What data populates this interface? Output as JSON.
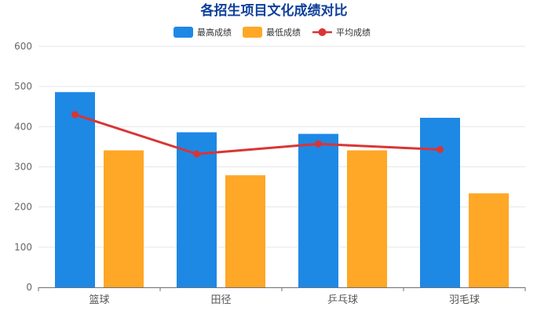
{
  "colors": {
    "title": "#0d3f9b",
    "max_bar": "#1e88e5",
    "min_bar": "#ffa726",
    "avg_line": "#d93535",
    "grid": "#e6e6e6",
    "axis": "#6e7079"
  },
  "chart_data": {
    "type": "bar",
    "title": "各招生项目文化成绩对比",
    "xlabel": "",
    "ylabel": "",
    "categories": [
      "篮球",
      "田径",
      "乒乓球",
      "羽毛球"
    ],
    "ylim": [
      0,
      600
    ],
    "yticks": [
      0,
      100,
      200,
      300,
      400,
      500,
      600
    ],
    "grid": true,
    "legend_position": "top-center",
    "series": [
      {
        "name": "最高成绩",
        "type": "bar",
        "values": [
          486,
          386,
          382,
          422
        ]
      },
      {
        "name": "最低成绩",
        "type": "bar",
        "values": [
          341,
          279,
          341,
          234
        ]
      },
      {
        "name": "平均成绩",
        "type": "line",
        "values": [
          430,
          332,
          357,
          343
        ]
      }
    ]
  }
}
